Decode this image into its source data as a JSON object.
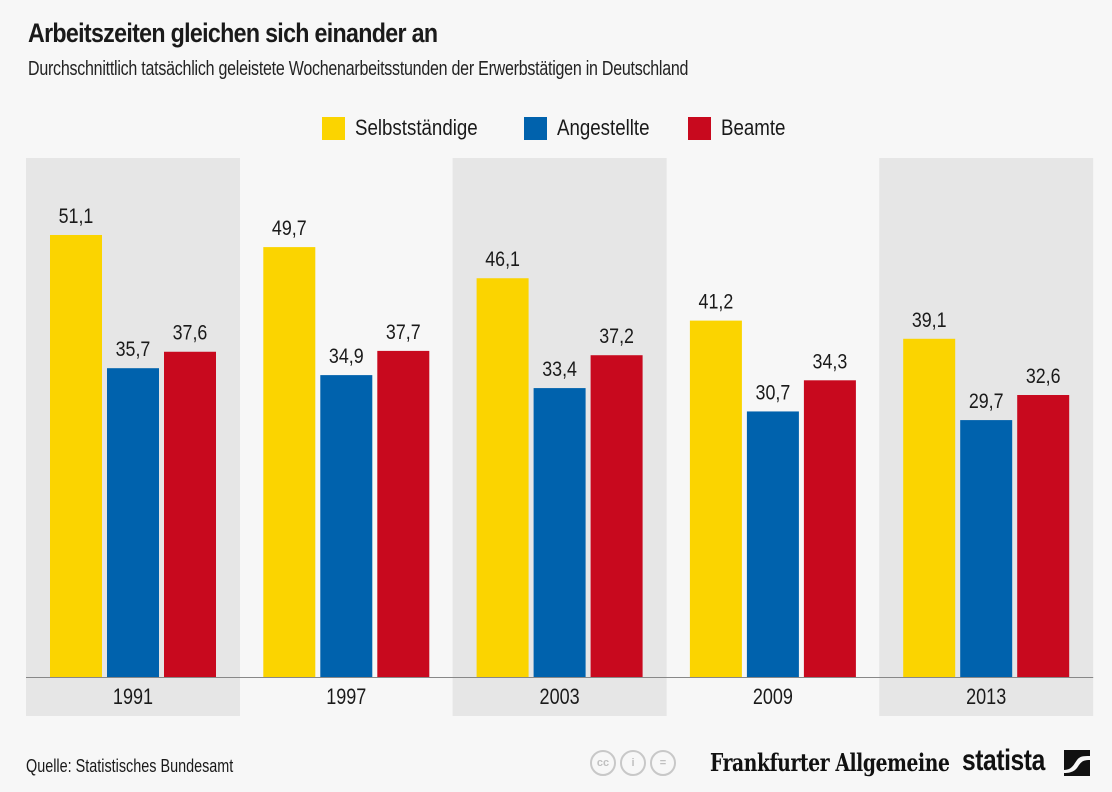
{
  "header": {
    "title": "Arbeitszeiten gleichen sich einander an",
    "subtitle": "Durchschnittlich tatsächlich geleistete Wochenarbeitsstunden der Erwerbstätigen in Deutschland"
  },
  "colors": {
    "selbststaendige": "#fbd400",
    "angestellte": "#0062ad",
    "beamte": "#c8091e",
    "band": "#e6e6e6",
    "background": "#f7f7f7",
    "baseline": "#888888"
  },
  "chart_data": {
    "type": "bar",
    "title": "Arbeitszeiten gleichen sich einander an",
    "subtitle": "Durchschnittlich tatsächlich geleistete Wochenarbeitsstunden der Erwerbstätigen in Deutschland",
    "xlabel": "",
    "ylabel": "",
    "categories": [
      "1991",
      "1997",
      "2003",
      "2009",
      "2013"
    ],
    "series": [
      {
        "name": "Selbstständige",
        "color": "#fbd400",
        "values": [
          51.1,
          49.7,
          46.1,
          41.2,
          39.1
        ],
        "labels": [
          "51,1",
          "49,7",
          "46,1",
          "41,2",
          "39,1"
        ]
      },
      {
        "name": "Angestellte",
        "color": "#0062ad",
        "values": [
          35.7,
          34.9,
          33.4,
          30.7,
          29.7
        ],
        "labels": [
          "35,7",
          "34,9",
          "33,4",
          "30,7",
          "29,7"
        ]
      },
      {
        "name": "Beamte",
        "color": "#c8091e",
        "values": [
          37.6,
          37.7,
          37.2,
          34.3,
          32.6
        ],
        "labels": [
          "37,6",
          "37,7",
          "37,2",
          "34,3",
          "32,6"
        ]
      }
    ],
    "ylim": [
      0,
      60
    ],
    "grid": false,
    "legend": "top-center",
    "shaded_categories": [
      "1991",
      "2003",
      "2013"
    ]
  },
  "footer": {
    "source": "Quelle: Statistisches Bundesamt",
    "cc_icons": [
      "cc",
      "by",
      "nd"
    ],
    "cc_glyphs": [
      "cc",
      "i",
      "="
    ],
    "publisher": "Frankfurter Allgemeine",
    "brand": "statista"
  }
}
